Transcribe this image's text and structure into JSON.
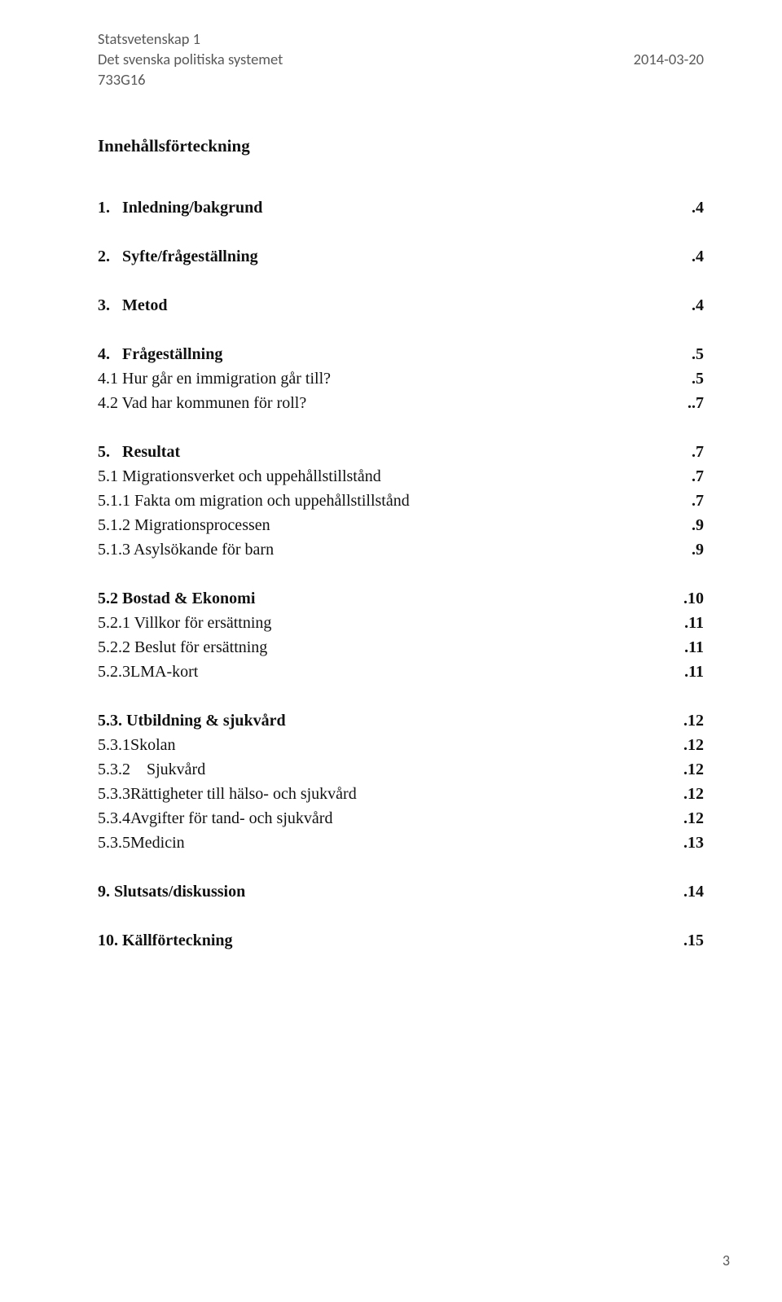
{
  "header": {
    "course": "Statsvetenskap 1",
    "subtitle": "Det svenska politiska systemet",
    "date": "2014-03-20",
    "code": "733G16"
  },
  "title": "Innehållsförteckning",
  "toc": [
    {
      "type": "group",
      "items": [
        {
          "label": "1.   Inledning/bakgrund",
          "page": ".4",
          "bold": true
        }
      ]
    },
    {
      "type": "group",
      "items": [
        {
          "label": "2.   Syfte/frågeställning",
          "page": ".4",
          "bold": true
        }
      ]
    },
    {
      "type": "group",
      "items": [
        {
          "label": "3.   Metod",
          "page": ".4",
          "bold": true
        }
      ]
    },
    {
      "type": "group",
      "items": [
        {
          "label": "4.   Frågeställning",
          "page": ".5",
          "bold": true
        },
        {
          "label": "4.1 Hur går en immigration går till?",
          "page": ".5",
          "bold": false
        },
        {
          "label": "4.2 Vad har kommunen för roll?",
          "page": "..7",
          "bold": false
        }
      ]
    },
    {
      "type": "group",
      "items": [
        {
          "label": "5.   Resultat",
          "page": ".7",
          "bold": true
        },
        {
          "label": "5.1 Migrationsverket och uppehållstillstånd",
          "page": ".7",
          "bold": false
        },
        {
          "label": "5.1.1 Fakta om migration och uppehållstillstånd",
          "page": ".7",
          "bold": false
        },
        {
          "label": "5.1.2 Migrationsprocessen",
          "page": ".9",
          "bold": false
        },
        {
          "label": "5.1.3 Asylsökande för barn",
          "page": ".9",
          "bold": false
        }
      ]
    },
    {
      "type": "group",
      "items": [
        {
          "label": "5.2 Bostad & Ekonomi",
          "page": ".10",
          "bold": true
        },
        {
          "label": "5.2.1 Villkor för ersättning",
          "page": ".11",
          "bold": false
        },
        {
          "label": "5.2.2 Beslut för ersättning",
          "page": ".11",
          "bold": false
        },
        {
          "label": "5.2.3LMA-kort",
          "page": ".11",
          "bold": false
        }
      ]
    },
    {
      "type": "group",
      "items": [
        {
          "label": "5.3. Utbildning & sjukvård",
          "page": ".12",
          "bold": true
        },
        {
          "label": "5.3.1Skolan",
          "page": ".12",
          "bold": false
        },
        {
          "label": "5.3.2    Sjukvård",
          "page": ".12",
          "bold": false
        },
        {
          "label": "5.3.3Rättigheter till hälso- och sjukvård",
          "page": ".12",
          "bold": false
        },
        {
          "label": "5.3.4Avgifter för tand- och sjukvård",
          "page": ".12",
          "bold": false
        },
        {
          "label": "5.3.5Medicin",
          "page": ".13",
          "bold": false
        }
      ]
    },
    {
      "type": "group",
      "items": [
        {
          "label": "9. Slutsats/diskussion",
          "page": ".14",
          "bold": true
        }
      ]
    },
    {
      "type": "group",
      "items": [
        {
          "label": "10. Källförteckning",
          "page": ".15",
          "bold": true
        }
      ]
    }
  ],
  "page_number": "3"
}
